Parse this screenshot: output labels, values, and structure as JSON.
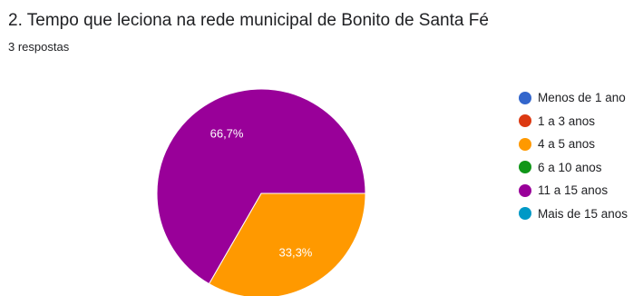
{
  "question": {
    "title": "2. Tempo que leciona na rede municipal de Bonito de Santa Fé",
    "responses": "3 respostas"
  },
  "chart_data": {
    "type": "pie",
    "categories": [
      "Menos de 1 ano",
      "1 a 3 anos",
      "4 a 5 anos",
      "6 a 10 anos",
      "11 a 15 anos",
      "Mais de 15 anos"
    ],
    "values": [
      0,
      0,
      1,
      0,
      2,
      0
    ],
    "percent_labels": [
      "",
      "",
      "33,3%",
      "",
      "66,7%",
      ""
    ],
    "colors": [
      "#3366cc",
      "#dc3912",
      "#ff9900",
      "#109618",
      "#990099",
      "#0099c6"
    ],
    "legend_position": "right"
  }
}
